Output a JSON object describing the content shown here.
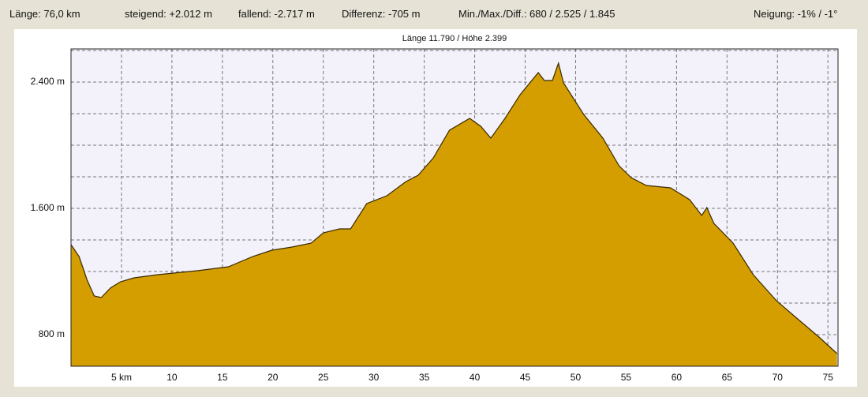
{
  "header": {
    "items": [
      "Länge: 76,0 km",
      "steigend: +2.012 m",
      "fallend: -2.717 m",
      "Differenz: -705 m",
      "Min./Max./Diff.: 680 / 2.525 / 1.845",
      "Neigung: -1% / -1°"
    ]
  },
  "chart_data": {
    "type": "area",
    "title": "Länge 11.790 / Höhe 2.399",
    "x": [
      0,
      0.8,
      1.6,
      2.3,
      3.0,
      3.9,
      4.9,
      6.25,
      8.6,
      12.5,
      15.6,
      18,
      19.9,
      21.9,
      23.8,
      25,
      26.6,
      27.7,
      29.3,
      31.3,
      33.2,
      34.4,
      35.9,
      37.5,
      39.5,
      40.6,
      41.6,
      43,
      44.5,
      46.3,
      46.9,
      47.7,
      48.3,
      48.8,
      50.8,
      52.7,
      54.3,
      55.5,
      57,
      59.4,
      61.3,
      62.5,
      63,
      63.7,
      65.6,
      67.6,
      69.9,
      71.9,
      74.2,
      75.9
    ],
    "series": [
      {
        "name": "Höhe",
        "color": "#d49e00",
        "values": [
          1370,
          1295,
          1145,
          1045,
          1035,
          1095,
          1135,
          1160,
          1180,
          1205,
          1230,
          1295,
          1335,
          1355,
          1380,
          1445,
          1470,
          1470,
          1630,
          1680,
          1770,
          1810,
          1920,
          2095,
          2170,
          2120,
          2045,
          2170,
          2320,
          2460,
          2410,
          2410,
          2520,
          2395,
          2195,
          2045,
          1870,
          1795,
          1745,
          1730,
          1655,
          1555,
          1605,
          1505,
          1380,
          1180,
          1015,
          905,
          780,
          680
        ]
      }
    ],
    "xlim": [
      0,
      76
    ],
    "xticks": [
      {
        "value": 5,
        "label": "5 km"
      },
      10,
      15,
      20,
      25,
      30,
      35,
      40,
      45,
      50,
      55,
      60,
      65,
      70,
      75
    ],
    "ylim": [
      600,
      2610
    ],
    "yticks": [
      {
        "value": 800,
        "label": "800 m"
      },
      {
        "value": 1600,
        "label": "1.600 m"
      },
      {
        "value": 2400,
        "label": "2.400 m"
      }
    ],
    "minor_yticks": [
      1000,
      1200,
      1400,
      1800,
      2000,
      2200,
      2600
    ],
    "grid": true
  }
}
